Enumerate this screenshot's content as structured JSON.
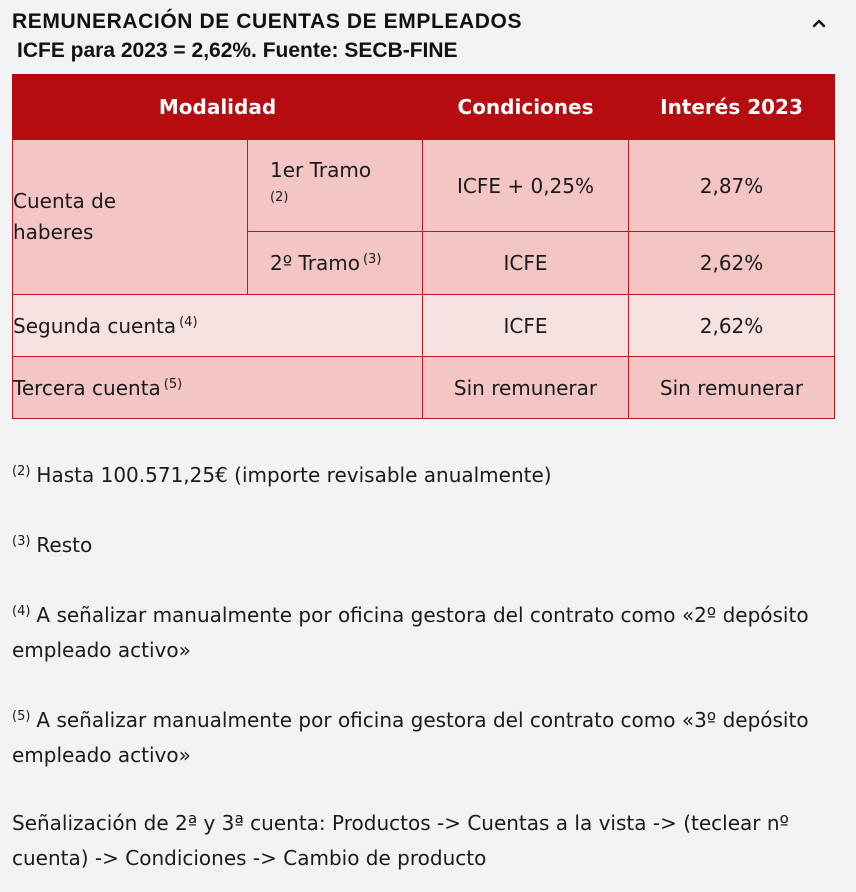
{
  "header": {
    "title": "REMUNERACIÓN DE CUENTAS DE EMPLEADOS",
    "subtitle": "ICFE para 2023 = 2,62%. Fuente: SECB-FINE",
    "collapse_icon": "chevron-up-icon"
  },
  "table": {
    "headers": [
      "Modalidad",
      "Condiciones",
      "Interés 2023"
    ],
    "group_label": "Cuenta de haberes",
    "rows": [
      {
        "sub_label": "1er Tramo",
        "sup": "(2)",
        "condition": "ICFE + 0,25%",
        "interest": "2,87%"
      },
      {
        "sub_label": "2º Tramo",
        "sup": "(3)",
        "condition": "ICFE",
        "interest": "2,62%"
      },
      {
        "label": "Segunda cuenta",
        "sup": "(4)",
        "condition": "ICFE",
        "interest": "2,62%"
      },
      {
        "label": "Tercera cuenta",
        "sup": "(5)",
        "condition": "Sin remunerar",
        "interest": "Sin remunerar"
      }
    ]
  },
  "notes": [
    {
      "sup": "(2)",
      "text": "Hasta 100.571,25€ (importe revisable anualmente)"
    },
    {
      "sup": "(3)",
      "text": "Resto"
    },
    {
      "sup": "(4)",
      "text": "A señalizar manualmente por oficina gestora del contrato como «2º depósito empleado activo»"
    },
    {
      "sup": "(5)",
      "text": "A señalizar manualmente por oficina gestora del contrato como «3º depósito empleado activo»"
    },
    {
      "sup": "",
      "text": "Señalización de 2ª y 3ª cuenta: Productos -> Cuentas a la vista -> (teclear nº cuenta) -> Condiciones -> Cambio de producto"
    }
  ],
  "colors": {
    "header_red": "#b60c0f",
    "row_pink": "#f3c5c5",
    "row_light": "#f7e2e2"
  }
}
